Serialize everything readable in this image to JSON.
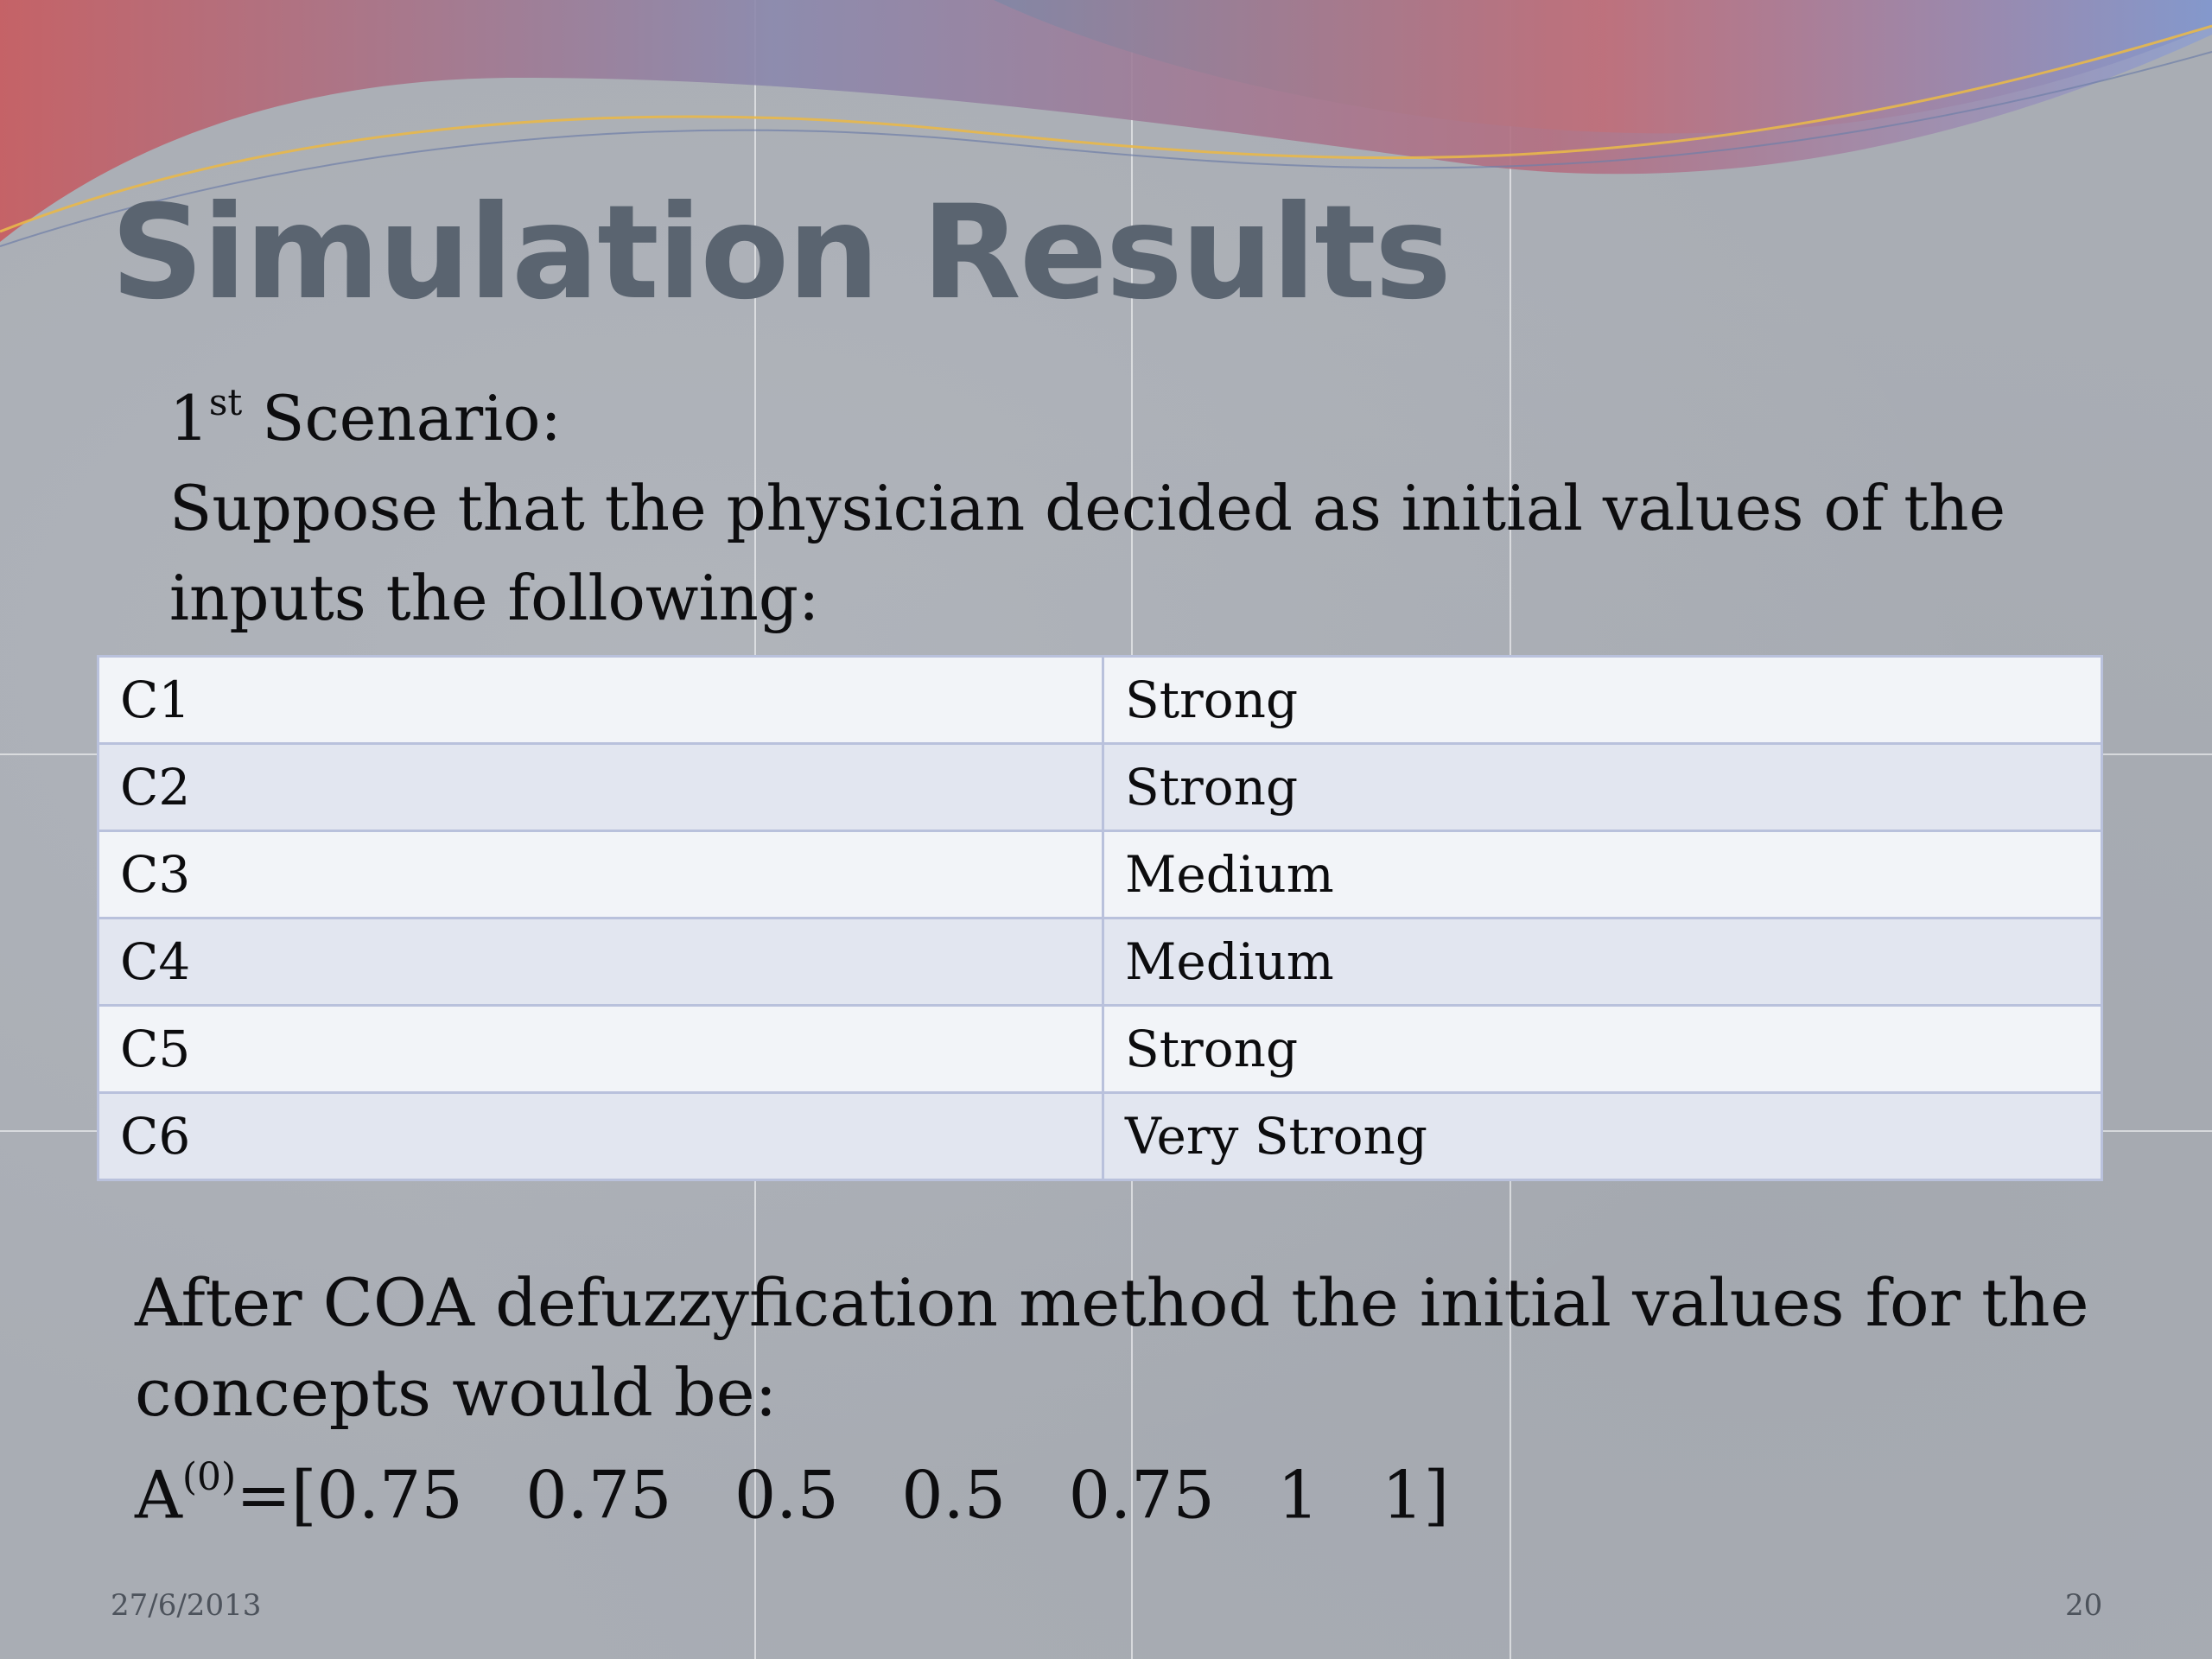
{
  "slide": {
    "title": "Simulation Results",
    "scenario_number": "1",
    "scenario_suffix": "st",
    "scenario_label": " Scenario:",
    "intro_text": "Suppose that the physician decided as initial values of the inputs the following:"
  },
  "inputs_table": {
    "rows": [
      {
        "concept": "C1",
        "value": "Strong"
      },
      {
        "concept": "C2",
        "value": "Strong"
      },
      {
        "concept": "C3",
        "value": "Medium"
      },
      {
        "concept": "C4",
        "value": "Medium"
      },
      {
        "concept": "C5",
        "value": "Strong"
      },
      {
        "concept": "C6",
        "value": "Very Strong"
      }
    ]
  },
  "result": {
    "text": "After COA defuzzyfication method the initial values for the concepts would be:",
    "formula_base": "A",
    "formula_superscript": "(0)",
    "formula_vector": "=[0.75   0.75   0.5   0.5   0.75   1   1]"
  },
  "footer": {
    "date": "27/6/2013",
    "page_number": "20"
  },
  "colors": {
    "title": "#5a6470",
    "background": "#a9adb4",
    "table_border": "#b9c1dc",
    "row_light": "#f2f4f8",
    "row_dark": "#e2e6f0"
  }
}
